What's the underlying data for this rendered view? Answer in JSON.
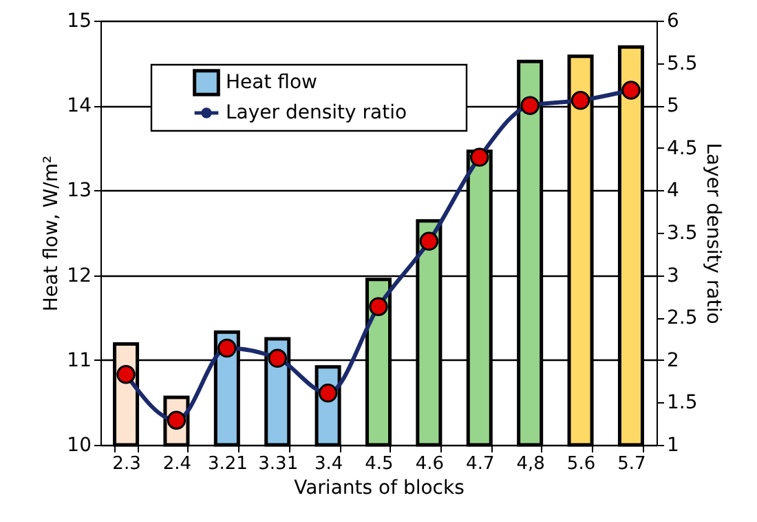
{
  "chart_data": {
    "type": "bar",
    "xlabel": "Variants of blocks",
    "ylabel": "Heat flow, W/m²",
    "y2label": "Layer density ratio",
    "categories": [
      "2.3",
      "2.4",
      "3.21",
      "3.31",
      "3.4",
      "4.5",
      "4.6",
      "4.7",
      "4,8",
      "5.6",
      "5.7"
    ],
    "series": [
      {
        "name": "Heat flow",
        "color": "#8ec5e8",
        "colors": [
          "#fde4d0",
          "#fde4d0",
          "#8ec5e8",
          "#8ec5e8",
          "#8ec5e8",
          "#98d58c",
          "#98d58c",
          "#98d58c",
          "#98d58c",
          "#ffd966",
          "#ffd966"
        ],
        "values": [
          11.19,
          10.56,
          11.33,
          11.25,
          10.92,
          11.95,
          12.64,
          13.46,
          14.52,
          14.58,
          14.69
        ]
      },
      {
        "name": "Layer density ratio",
        "type": "line",
        "axis": "y2",
        "color": "#1b2a6b",
        "marker": "circle",
        "line_style": "solid",
        "values": [
          1.83,
          1.29,
          2.14,
          2.02,
          1.61,
          2.63,
          3.4,
          4.39,
          5.0,
          5.06,
          5.18
        ]
      }
    ],
    "ylim": [
      10,
      15
    ],
    "yticks": [
      10,
      11,
      12,
      13,
      14,
      15
    ],
    "y2lim": [
      1,
      6
    ],
    "y2ticks": [
      1,
      1.5,
      2,
      2.5,
      3,
      3.5,
      4,
      4.5,
      5,
      5.5,
      6
    ],
    "grid": "y",
    "legend": "top left"
  }
}
